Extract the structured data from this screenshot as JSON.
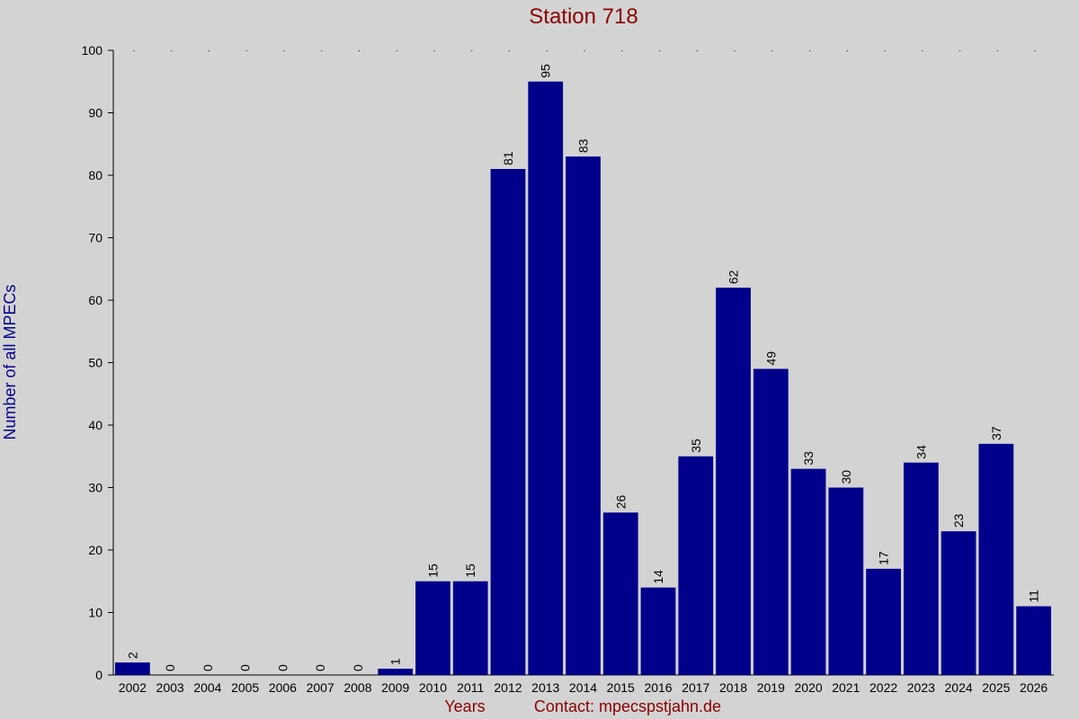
{
  "chart_data": {
    "type": "bar",
    "title": "Station 718",
    "xlabel": "Years",
    "ylabel": "Number of all MPECs",
    "footer_contact": "Contact: mpecs",
    "footer_email": "pstjahn.de",
    "categories": [
      "2002",
      "2003",
      "2004",
      "2005",
      "2006",
      "2007",
      "2008",
      "2009",
      "2010",
      "2011",
      "2012",
      "2013",
      "2014",
      "2015",
      "2016",
      "2017",
      "2018",
      "2019",
      "2020",
      "2021",
      "2022",
      "2023",
      "2024",
      "2025",
      "2026"
    ],
    "values": [
      2,
      0,
      0,
      0,
      0,
      0,
      0,
      1,
      15,
      15,
      81,
      95,
      83,
      26,
      14,
      35,
      62,
      49,
      33,
      30,
      17,
      34,
      23,
      37,
      11
    ],
    "ylim": [
      0,
      100
    ],
    "yticks": [
      0,
      10,
      20,
      30,
      40,
      50,
      60,
      70,
      80,
      90,
      100
    ],
    "bar_color": "#00008b",
    "title_color": "#8b0000",
    "ylabel_color": "#00008b",
    "background": "#d3d3d3",
    "grid": "dotted top line only"
  }
}
